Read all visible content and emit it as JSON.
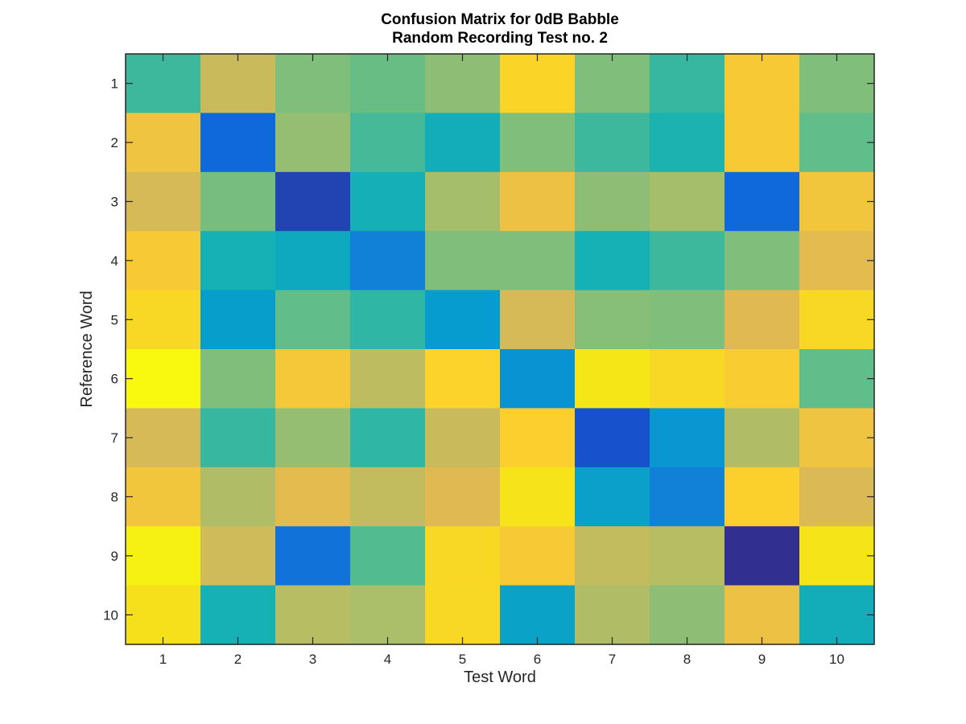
{
  "chart_data": {
    "type": "heatmap",
    "title": [
      "Confusion Matrix for 0dB Babble",
      "Random Recording Test no. 2"
    ],
    "xlabel": "Test Word",
    "ylabel": "Reference Word",
    "x_ticks": [
      "1",
      "2",
      "3",
      "4",
      "5",
      "6",
      "7",
      "8",
      "9",
      "10"
    ],
    "y_ticks": [
      "1",
      "2",
      "3",
      "4",
      "5",
      "6",
      "7",
      "8",
      "9",
      "10"
    ],
    "colormap": "parula",
    "grid": false,
    "values": [
      [
        0.46,
        0.66,
        0.55,
        0.52,
        0.57,
        0.83,
        0.55,
        0.45,
        0.78,
        0.55
      ],
      [
        0.75,
        0.14,
        0.58,
        0.47,
        0.38,
        0.55,
        0.46,
        0.41,
        0.78,
        0.51
      ],
      [
        0.68,
        0.54,
        0.05,
        0.39,
        0.6,
        0.74,
        0.57,
        0.6,
        0.14,
        0.76
      ],
      [
        0.78,
        0.4,
        0.36,
        0.21,
        0.55,
        0.55,
        0.4,
        0.46,
        0.55,
        0.71
      ],
      [
        0.84,
        0.31,
        0.51,
        0.44,
        0.3,
        0.68,
        0.56,
        0.55,
        0.7,
        0.84
      ],
      [
        0.99,
        0.55,
        0.77,
        0.64,
        0.82,
        0.27,
        0.91,
        0.84,
        0.79,
        0.51
      ],
      [
        0.68,
        0.45,
        0.58,
        0.44,
        0.66,
        0.8,
        0.08,
        0.28,
        0.62,
        0.75
      ],
      [
        0.76,
        0.62,
        0.71,
        0.65,
        0.7,
        0.89,
        0.32,
        0.21,
        0.81,
        0.69
      ],
      [
        0.95,
        0.67,
        0.17,
        0.49,
        0.84,
        0.78,
        0.65,
        0.63,
        0.01,
        0.9
      ],
      [
        0.88,
        0.4,
        0.63,
        0.61,
        0.84,
        0.33,
        0.62,
        0.57,
        0.74,
        0.38
      ]
    ]
  }
}
